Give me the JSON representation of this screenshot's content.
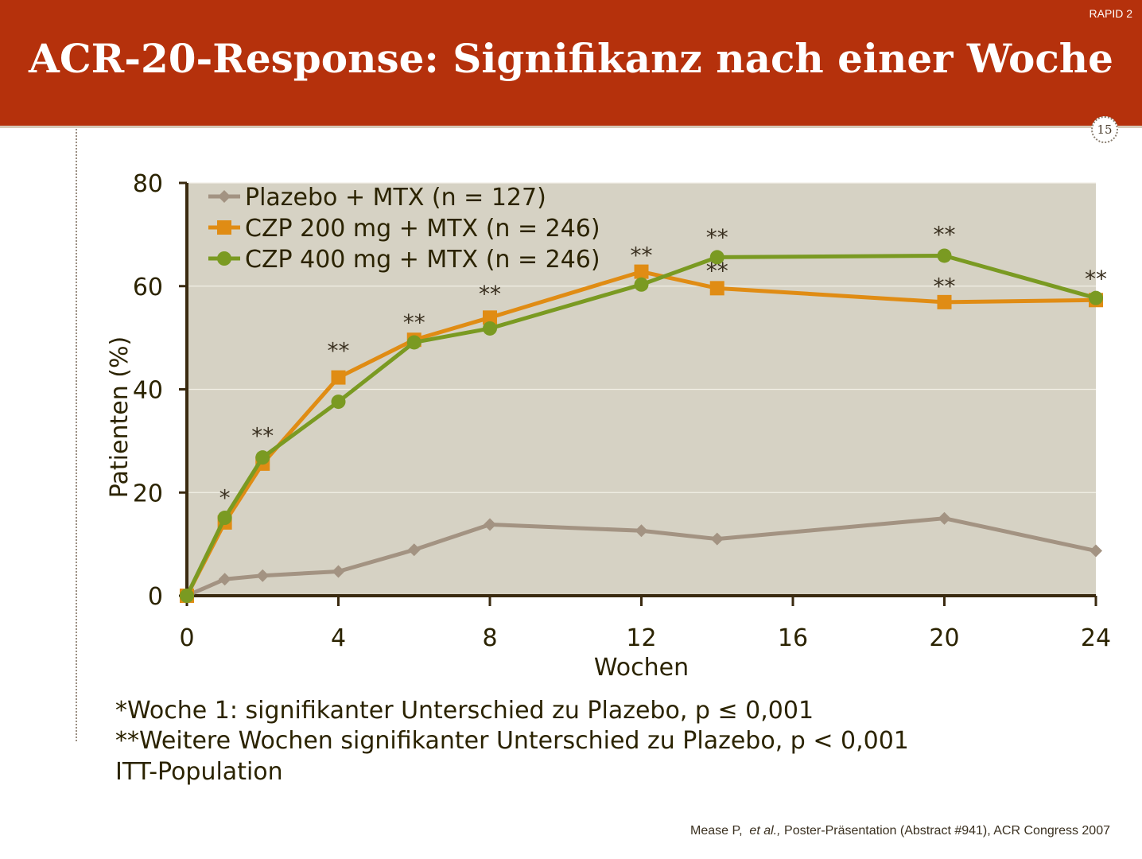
{
  "slide": {
    "title": "ACR-20-Response: Signifikanz nach einer Woche",
    "tag": "RAPID 2",
    "page_number": "15"
  },
  "footnotes": [
    "*Woche 1: signifikanter Unterschied zu Plazebo, p ≤ 0,001",
    "**Weitere Wochen signifikanter Unterschied zu Plazebo, p < 0,001",
    "ITT-Population"
  ],
  "citation": {
    "author": "Mease P,",
    "etal": "et al.,",
    "rest": "Poster-Präsentation (Abstract #941), ACR Congress 2007"
  },
  "colors": {
    "header": "#b5310c",
    "plot_background": "#d6d2c4",
    "placebo": "#a39382",
    "czp200": "#e08c14",
    "czp400": "#7a9a22"
  },
  "chart_data": {
    "type": "line",
    "xlabel": "Wochen",
    "ylabel": "Patienten (%)",
    "xlim": [
      0,
      24
    ],
    "ylim": [
      0,
      80
    ],
    "xticks": [
      0,
      4,
      8,
      12,
      16,
      20,
      24
    ],
    "yticks": [
      0,
      20,
      40,
      60,
      80
    ],
    "grid": "horizontal",
    "legend_position": "top-left",
    "series": [
      {
        "name": "Plazebo + MTX (n = 127)",
        "color": "#a39382",
        "marker": "diamond",
        "x": [
          0,
          1,
          2,
          4,
          6,
          8,
          12,
          14,
          20,
          24
        ],
        "y": [
          0,
          3.2,
          3.9,
          4.7,
          8.9,
          13.8,
          12.6,
          11.0,
          15.0,
          8.7
        ]
      },
      {
        "name": "CZP 200 mg + MTX (n = 246)",
        "color": "#e08c14",
        "marker": "square",
        "x": [
          0,
          1,
          2,
          4,
          6,
          8,
          12,
          14,
          20,
          24
        ],
        "y": [
          0,
          14.2,
          25.6,
          42.3,
          49.6,
          53.9,
          62.8,
          59.6,
          56.9,
          57.3
        ]
      },
      {
        "name": "CZP 400 mg + MTX (n = 246)",
        "color": "#7a9a22",
        "marker": "circle",
        "x": [
          0,
          1,
          2,
          4,
          6,
          8,
          12,
          14,
          20,
          24
        ],
        "y": [
          0,
          15.1,
          26.8,
          37.6,
          49.1,
          51.8,
          60.3,
          65.6,
          65.9,
          57.7
        ]
      }
    ],
    "annotations": [
      {
        "text": "*",
        "x": 1,
        "y": 17.5
      },
      {
        "text": "**",
        "x": 2,
        "y": 29.5
      },
      {
        "text": "**",
        "x": 4,
        "y": 46.0
      },
      {
        "text": "**",
        "x": 6,
        "y": 51.5
      },
      {
        "text": "**",
        "x": 8,
        "y": 57.0
      },
      {
        "text": "**",
        "x": 12,
        "y": 64.5
      },
      {
        "text": "**",
        "x": 14,
        "y": 68.0
      },
      {
        "text": "**",
        "x": 14,
        "y": 61.5
      },
      {
        "text": "**",
        "x": 20,
        "y": 68.5
      },
      {
        "text": "**",
        "x": 20,
        "y": 58.5
      },
      {
        "text": "**",
        "x": 24,
        "y": 60.0
      }
    ]
  }
}
